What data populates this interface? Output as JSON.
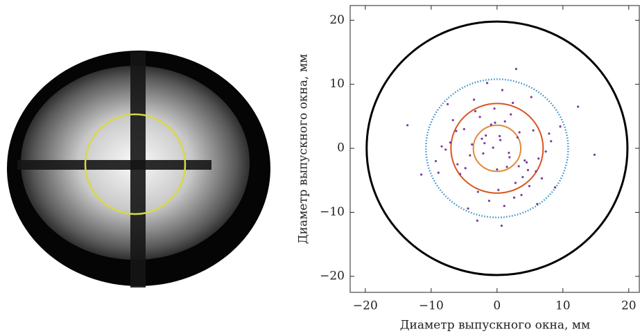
{
  "chart_data": {
    "type": "scatter",
    "xlabel": "Диаметр выпускного окна, мм",
    "ylabel": "Диаметр выпускного окна, мм",
    "xlim": [
      -22.3,
      21.6
    ],
    "ylim": [
      -22.5,
      22.3
    ],
    "xticks": [
      {
        "value": -20,
        "label": "−20"
      },
      {
        "value": -10,
        "label": "−10"
      },
      0,
      10,
      20
    ],
    "yticks": [
      {
        "value": -20,
        "label": "−20"
      },
      {
        "value": -10,
        "label": "−10"
      },
      0,
      10,
      20
    ],
    "series": [
      {
        "color": "#7a3c9e",
        "x": [
          0.5,
          -2.1,
          3.4,
          -4.8,
          1.2,
          6.3,
          -7.1,
          2.8,
          -0.9,
          4.5,
          -3.3,
          8.2,
          -5.6,
          0.2,
          -1.7,
          2.4,
          5.9,
          -8.4,
          1.9,
          -2.6,
          3.7,
          -6.2,
          7.4,
          -0.4,
          1.5,
          -4.1,
          9.6,
          -9.3,
          0.8,
          -3.8,
          4.9,
          -1.2,
          2.1,
          -5.0,
          6.8,
          -7.8,
          3.1,
          -2.9,
          0.0,
          5.2,
          -6.7,
          1.1,
          -0.6,
          4.2,
          -3.5,
          7.9,
          -8.9,
          2.6,
          -1.5,
          3.9,
          12.3,
          -11.5,
          14.8,
          -13.6,
          0.7,
          -4.4,
          5.5,
          -2.3,
          1.8,
          -0.3,
          6.1,
          -6.0,
          2.9,
          -1.9,
          3.3,
          -7.5,
          8.8,
          -3.0,
          0.4,
          4.7
        ],
        "y": [
          1.3,
          -0.8,
          2.5,
          -3.1,
          4.2,
          -1.6,
          0.9,
          -5.4,
          3.7,
          -2.2,
          5.8,
          1.1,
          -4.0,
          -6.5,
          2.0,
          7.1,
          -3.6,
          0.3,
          -1.4,
          4.9,
          -7.3,
          2.7,
          -0.5,
          6.2,
          -2.9,
          -1.1,
          3.4,
          -2.0,
          9.1,
          0.6,
          -5.9,
          -8.2,
          5.3,
          3.0,
          -4.7,
          -0.2,
          1.7,
          -6.8,
          -3.3,
          8.0,
          4.4,
          -9.0,
          0.1,
          -1.9,
          7.6,
          2.3,
          -3.8,
          -7.7,
          10.2,
          -4.5,
          6.5,
          -4.1,
          -1.0,
          3.6,
          -12.1,
          -9.4,
          2.8,
          1.5,
          -0.7,
          4.0,
          -8.7,
          -2.5,
          12.4,
          0.8,
          -2.8,
          6.9,
          -6.1,
          -11.3,
          1.9,
          -3.4
        ]
      }
    ],
    "circles": [
      {
        "radius": 19.8,
        "color": "#000000",
        "dashed": false
      },
      {
        "radius": 10.8,
        "color": "#3a8fc8",
        "dashed": true
      },
      {
        "radius": 7.0,
        "color": "#d8541e",
        "dashed": false
      },
      {
        "radius": 3.6,
        "color": "#e08a3a",
        "dashed": false
      }
    ]
  }
}
